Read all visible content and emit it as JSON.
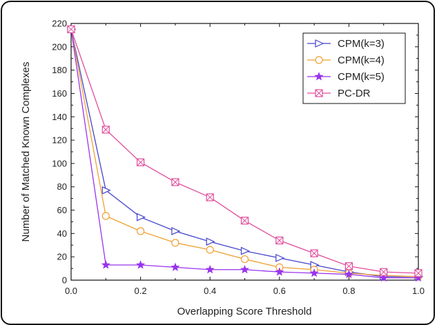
{
  "chart_data": {
    "type": "line",
    "title": "",
    "xlabel": "Overlapping Score Threshold",
    "ylabel": "Number of Matched Known Complexes",
    "xlim": [
      0,
      1.0
    ],
    "ylim": [
      0,
      220
    ],
    "xticks": [
      "0.0",
      "0.2",
      "0.4",
      "0.6",
      "0.8",
      "1.0"
    ],
    "yticks": [
      "0",
      "20",
      "40",
      "60",
      "80",
      "100",
      "120",
      "140",
      "160",
      "180",
      "200",
      "220"
    ],
    "x": [
      0.0,
      0.1,
      0.2,
      0.3,
      0.4,
      0.5,
      0.6,
      0.7,
      0.8,
      0.9,
      1.0
    ],
    "legend_position": "top-right",
    "grid": false,
    "series": [
      {
        "name": "CPM(k=3)",
        "color": "#4444cc",
        "marker": "triangle-right",
        "values": [
          215,
          77,
          54,
          42,
          33,
          25,
          19,
          13,
          7,
          3,
          3
        ]
      },
      {
        "name": "CPM(k=4)",
        "color": "#f0a030",
        "marker": "circle",
        "values": [
          215,
          55,
          42,
          32,
          26,
          18,
          11,
          9,
          6,
          4,
          3
        ]
      },
      {
        "name": "CPM(k=5)",
        "color": "#9933ee",
        "marker": "star",
        "values": [
          215,
          13,
          13,
          11,
          9,
          9,
          7,
          6,
          5,
          2,
          2
        ]
      },
      {
        "name": "PC-DR",
        "color": "#e04c9c",
        "marker": "crossed-square",
        "values": [
          215,
          129,
          101,
          84,
          71,
          51,
          34,
          23,
          12,
          7,
          6
        ]
      }
    ]
  }
}
